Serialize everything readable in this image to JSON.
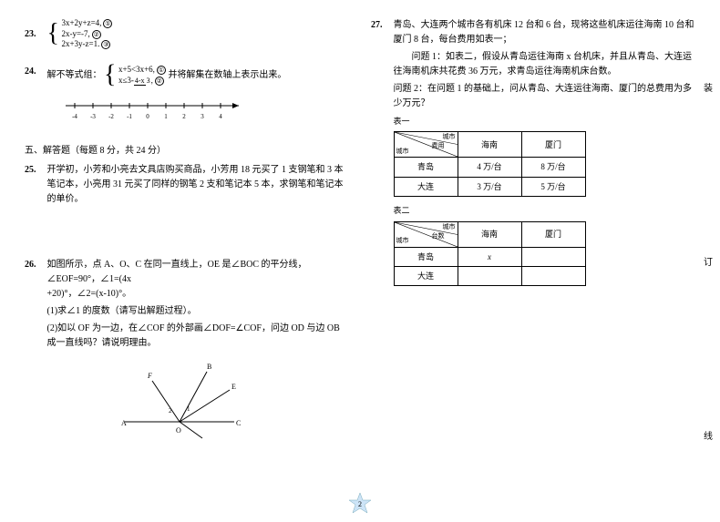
{
  "q23": {
    "num": "23.",
    "eq1": "3x+2y+z=4,",
    "c1": "①",
    "eq2": "2x-y=-7,",
    "c2": "②",
    "eq3": "2x+3y-z=1.",
    "c3": "③"
  },
  "q24": {
    "num": "24.",
    "lead": "解不等式组：",
    "eq1": "x+5<3x+6,",
    "c1": "①",
    "eq2_pre": "x≤3-",
    "eq2_frac_n": "4-x",
    "eq2_frac_d": "3",
    "eq2_post": ",",
    "c2": "②",
    "trail": " 并将解集在数轴上表示出来。",
    "ticks": [
      "-4",
      "-3",
      "-2",
      "-1",
      "0",
      "1",
      "2",
      "3",
      "4"
    ]
  },
  "section5": "五、解答题（每题 8 分，共 24 分）",
  "q25": {
    "num": "25.",
    "text": "开学初，小芳和小亮去文具店购买商品，小芳用 18 元买了 1 支钢笔和 3 本笔记本，小亮用 31 元买了同样的钢笔 2 支和笔记本 5 本，求钢笔和笔记本的单价。"
  },
  "q26": {
    "num": "26.",
    "l1_a": "如图所示，点 A、O、C 在同一直线上，OE 是∠BOC 的平分线，∠EOF=90°，∠1=(4x",
    "l1_b": "+20)°，∠2=(x-10)°。",
    "p1": "(1)求∠1 的度数（请写出解题过程）。",
    "p2": "(2)如以 OF 为一边，在∠COF 的外部画∠DOF=∠COF，问边 OD 与边 OB 成一直线吗？请说明理由。",
    "labels": {
      "A": "A",
      "O": "O",
      "C": "C",
      "B": "B",
      "E": "E",
      "F": "F",
      "a1": "1",
      "a2": "2"
    }
  },
  "q27": {
    "num": "27.",
    "intro": "青岛、大连两个城市各有机床 12 台和 6 台，现将这些机床运往海南 10 台和厦门 8 台，每台费用如表一；",
    "p1": "问题 1：如表二，假设从青岛运往海南 x 台机床，并且从青岛、大连运往海南机床共花费 36 万元，求青岛运往海南机床台数。",
    "p2": "问题 2：在问题 1 的基础上，问从青岛、大连运往海南、厦门的总费用为多少万元？",
    "t1": {
      "label": "表一",
      "diag_top": "城市",
      "diag_mid": "费用",
      "diag_bot": "城市",
      "h1": "海南",
      "h2": "厦门",
      "r1c0": "青岛",
      "r1c1": "4 万/台",
      "r1c2": "8 万/台",
      "r2c0": "大连",
      "r2c1": "3 万/台",
      "r2c2": "5 万/台"
    },
    "t2": {
      "label": "表二",
      "diag_top": "城市",
      "diag_mid": "台数",
      "diag_bot": "城市",
      "h1": "海南",
      "h2": "厦门",
      "r1c0": "青岛",
      "r1c1": "x",
      "r1c2": "",
      "r2c0": "大连",
      "r2c1": "",
      "r2c2": ""
    }
  },
  "side": {
    "m1": "装",
    "m2": "订",
    "m3": "线"
  },
  "page_num": "2"
}
